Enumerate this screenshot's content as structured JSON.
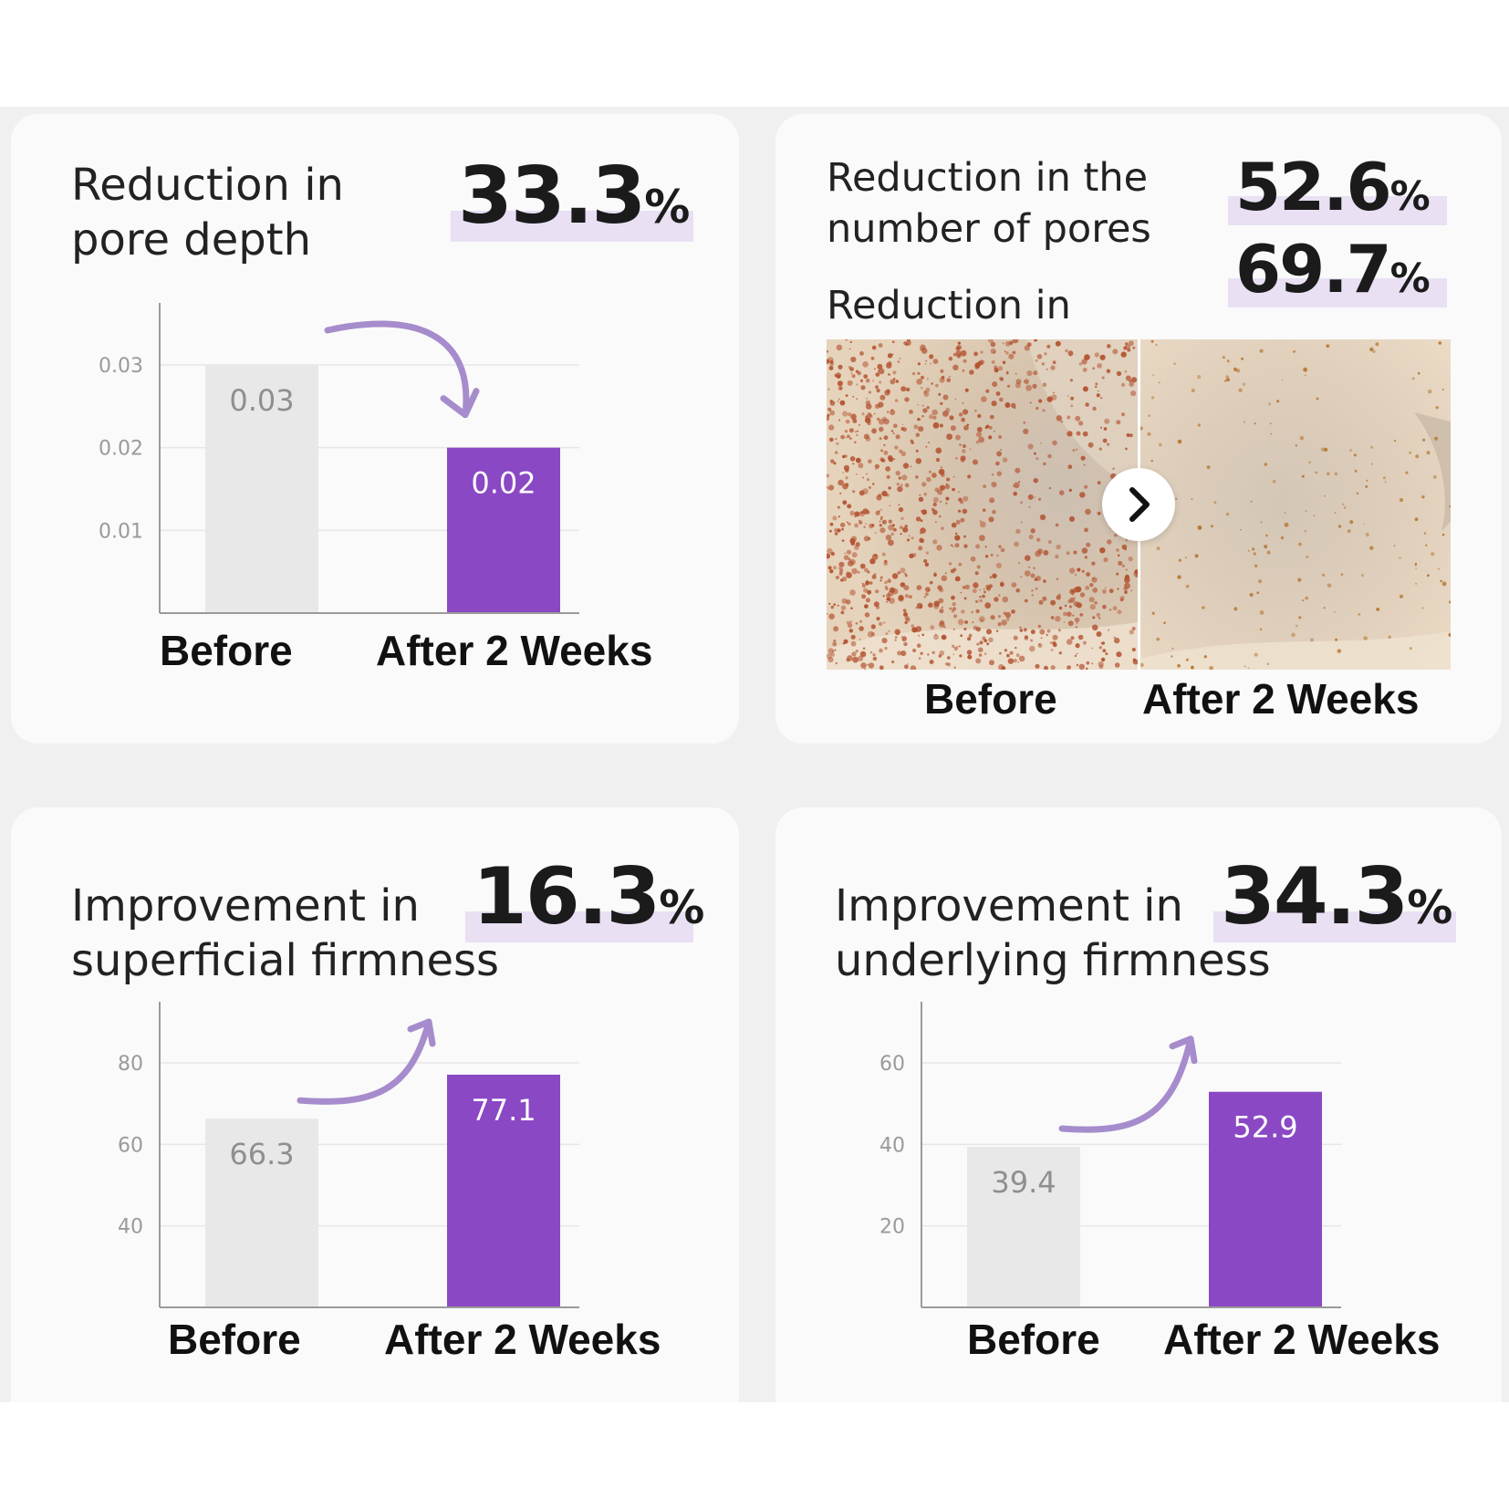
{
  "panels": [
    {
      "title": "Reduction in\npore depth",
      "stat": "33.3",
      "stat_unit": "%"
    },
    {
      "stats": [
        {
          "label": "Reduction in the\nnumber of pores",
          "value": "52.6",
          "unit": "%"
        },
        {
          "label": "Reduction in\npore area",
          "value": "69.7",
          "unit": "%"
        }
      ],
      "photo_before_label": "Before",
      "photo_after_label": "After 2 Weeks",
      "arrow_icon": "chevron-right-icon"
    },
    {
      "title": "Improvement in\nsuperficial firmness",
      "stat": "16.3",
      "stat_unit": "%"
    },
    {
      "title": "Improvement in\nunderlying firmness",
      "stat": "34.3",
      "stat_unit": "%"
    }
  ],
  "colors": {
    "before_bar": "#e8e8e8",
    "after_bar": "#8a48c4",
    "arrow": "#a68ccc",
    "highlight": "#e9e0f4",
    "card": "#fafafa",
    "band": "#f0f0f1"
  },
  "chart_data": [
    {
      "type": "bar",
      "categories": [
        "Before",
        "After 2 Weeks"
      ],
      "values": [
        0.03,
        0.02
      ],
      "value_labels": [
        "0.03",
        "0.02"
      ],
      "yticks": [
        0.01,
        0.02,
        0.03
      ],
      "ytick_labels": [
        "0.01",
        "0.02",
        "0.03"
      ],
      "ylim": [
        0,
        0.0375
      ],
      "trend": "down",
      "grid": true
    },
    {
      "type": "bar",
      "categories": [
        "Before",
        "After 2 Weeks"
      ],
      "values": [
        66.3,
        77.1
      ],
      "value_labels": [
        "66.3",
        "77.1"
      ],
      "yticks": [
        40,
        60,
        80
      ],
      "ytick_labels": [
        "40",
        "60",
        "80"
      ],
      "ylim": [
        20,
        95
      ],
      "trend": "up",
      "grid": true
    },
    {
      "type": "bar",
      "categories": [
        "Before",
        "After 2 Weeks"
      ],
      "values": [
        39.4,
        52.9
      ],
      "value_labels": [
        "39.4",
        "52.9"
      ],
      "yticks": [
        20,
        40,
        60
      ],
      "ytick_labels": [
        "20",
        "40",
        "60"
      ],
      "ylim": [
        0,
        75
      ],
      "trend": "up",
      "grid": true
    }
  ]
}
